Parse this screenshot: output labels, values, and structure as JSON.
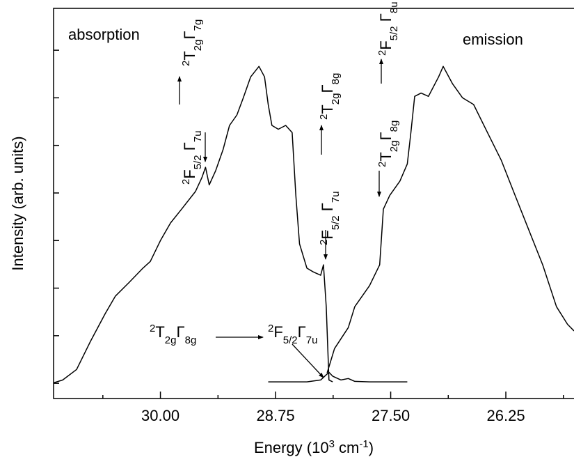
{
  "chart_data": {
    "type": "line",
    "ylabel": "Intensity (arb. units)",
    "xlabel": {
      "parts": [
        {
          "text": "Energy (10",
          "style": "normal"
        },
        {
          "text": "3",
          "style": "sup"
        },
        {
          "text": " cm",
          "style": "normal"
        },
        {
          "text": "-1",
          "style": "sup"
        },
        {
          "text": ")",
          "style": "normal"
        }
      ]
    },
    "xlim": [
      31.16,
      25.51
    ],
    "ylim": [
      -0.32,
      7.88
    ],
    "xticks": [
      {
        "value": 30,
        "label": "30.00"
      },
      28.75,
      {
        "value": 27.5,
        "label": "27.50"
      },
      26.25
    ],
    "xminor_ticks": [
      30.625,
      29.375,
      28.125,
      26.875,
      25.625
    ],
    "yticks": [
      0,
      1,
      2,
      3,
      4,
      5,
      6,
      7
    ],
    "show_ytick_labels": false,
    "series": [
      {
        "name": "absorption",
        "color": "#000000",
        "x": [
          31.16,
          31.06,
          30.91,
          30.76,
          30.6,
          30.49,
          30.34,
          30.19,
          30.11,
          30.0,
          29.89,
          29.77,
          29.62,
          29.55,
          29.51,
          29.47,
          29.4,
          29.32,
          29.25,
          29.17,
          29.1,
          29.02,
          28.93,
          28.87,
          28.83,
          28.79,
          28.72,
          28.64,
          28.57,
          28.53,
          28.49,
          28.41,
          28.34,
          28.26,
          28.23,
          28.2,
          28.17,
          28.13
        ],
        "values": [
          0.01,
          0.07,
          0.29,
          0.88,
          1.46,
          1.83,
          2.12,
          2.42,
          2.56,
          3.0,
          3.37,
          3.66,
          4.03,
          4.32,
          4.54,
          4.17,
          4.47,
          4.91,
          5.42,
          5.64,
          6.0,
          6.44,
          6.66,
          6.44,
          5.86,
          5.42,
          5.34,
          5.42,
          5.27,
          3.95,
          2.93,
          2.42,
          2.34,
          2.27,
          2.49,
          1.61,
          0.07,
          0.03
        ]
      },
      {
        "name": "emission",
        "color": "#000000",
        "x": [
          28.19,
          28.11,
          27.96,
          27.89,
          27.73,
          27.62,
          27.58,
          27.51,
          27.4,
          27.32,
          27.28,
          27.24,
          27.17,
          27.09,
          26.98,
          26.93,
          26.83,
          26.72,
          26.6,
          26.45,
          26.3,
          26.15,
          26.0,
          25.85,
          25.7,
          25.58,
          25.51
        ],
        "values": [
          0.22,
          0.73,
          1.17,
          1.61,
          2.05,
          2.49,
          3.66,
          3.95,
          4.25,
          4.61,
          5.29,
          6.03,
          6.1,
          6.03,
          6.44,
          6.66,
          6.3,
          6.0,
          5.86,
          5.27,
          4.69,
          3.95,
          3.22,
          2.49,
          1.61,
          1.24,
          1.1
        ]
      },
      {
        "color": "#000000",
        "x": [
          28.83,
          28.41,
          28.26,
          28.2,
          28.17,
          28.13,
          28.04,
          27.96,
          27.89,
          27.73,
          27.32
        ],
        "values": [
          0.03,
          0.03,
          0.07,
          0.18,
          0.23,
          0.15,
          0.07,
          0.1,
          0.04,
          0.03,
          0.03
        ]
      }
    ],
    "annotations": [
      {
        "parts": [
          {
            "text": "2",
            "style": "sup"
          },
          {
            "text": "F",
            "style": "normal"
          },
          {
            "text": "5/2",
            "style": "sub"
          },
          {
            "text": " Γ",
            "style": "normal"
          },
          {
            "text": "7u",
            "style": "sub"
          }
        ]
      },
      {
        "parts": [
          {
            "text": "2",
            "style": "sup"
          },
          {
            "text": "T",
            "style": "normal"
          },
          {
            "text": "2g",
            "style": "sub"
          },
          {
            "text": "Γ",
            "style": "normal"
          },
          {
            "text": "7g",
            "style": "sub"
          }
        ]
      },
      {
        "parts": [
          {
            "text": "2",
            "style": "sup"
          },
          {
            "text": "F",
            "style": "normal"
          },
          {
            "text": "5/2",
            "style": "sub"
          },
          {
            "text": " Γ",
            "style": "normal"
          },
          {
            "text": "7u",
            "style": "sub"
          }
        ]
      },
      {
        "parts": [
          {
            "text": "2",
            "style": "sup"
          },
          {
            "text": "T",
            "style": "normal"
          },
          {
            "text": "2g",
            "style": "sub"
          },
          {
            "text": "Γ",
            "style": "normal"
          },
          {
            "text": "8g",
            "style": "sub"
          }
        ]
      },
      {
        "parts": [
          {
            "text": "2",
            "style": "sup"
          },
          {
            "text": "T",
            "style": "normal"
          },
          {
            "text": "2g",
            "style": "sub"
          },
          {
            "text": "Γ",
            "style": "normal"
          },
          {
            "text": "8g",
            "style": "sub"
          }
        ]
      },
      {
        "parts": [
          {
            "text": "2",
            "style": "sup"
          },
          {
            "text": "F",
            "style": "normal"
          },
          {
            "text": "5/2",
            "style": "sub"
          },
          {
            "text": " Γ",
            "style": "normal"
          },
          {
            "text": "8u",
            "style": "sub"
          }
        ]
      },
      {
        "parts": [
          {
            "text": "2",
            "style": "sup"
          },
          {
            "text": "T",
            "style": "normal"
          },
          {
            "text": "2g",
            "style": "sub"
          },
          {
            "text": "Γ",
            "style": "normal"
          },
          {
            "text": "8g",
            "style": "sub"
          }
        ]
      },
      {
        "parts": [
          {
            "text": "2",
            "style": "sup"
          },
          {
            "text": "F",
            "style": "normal"
          },
          {
            "text": "5/2",
            "style": "sub"
          },
          {
            "text": "Γ",
            "style": "normal"
          },
          {
            "text": "7u",
            "style": "sub"
          }
        ]
      }
    ]
  }
}
